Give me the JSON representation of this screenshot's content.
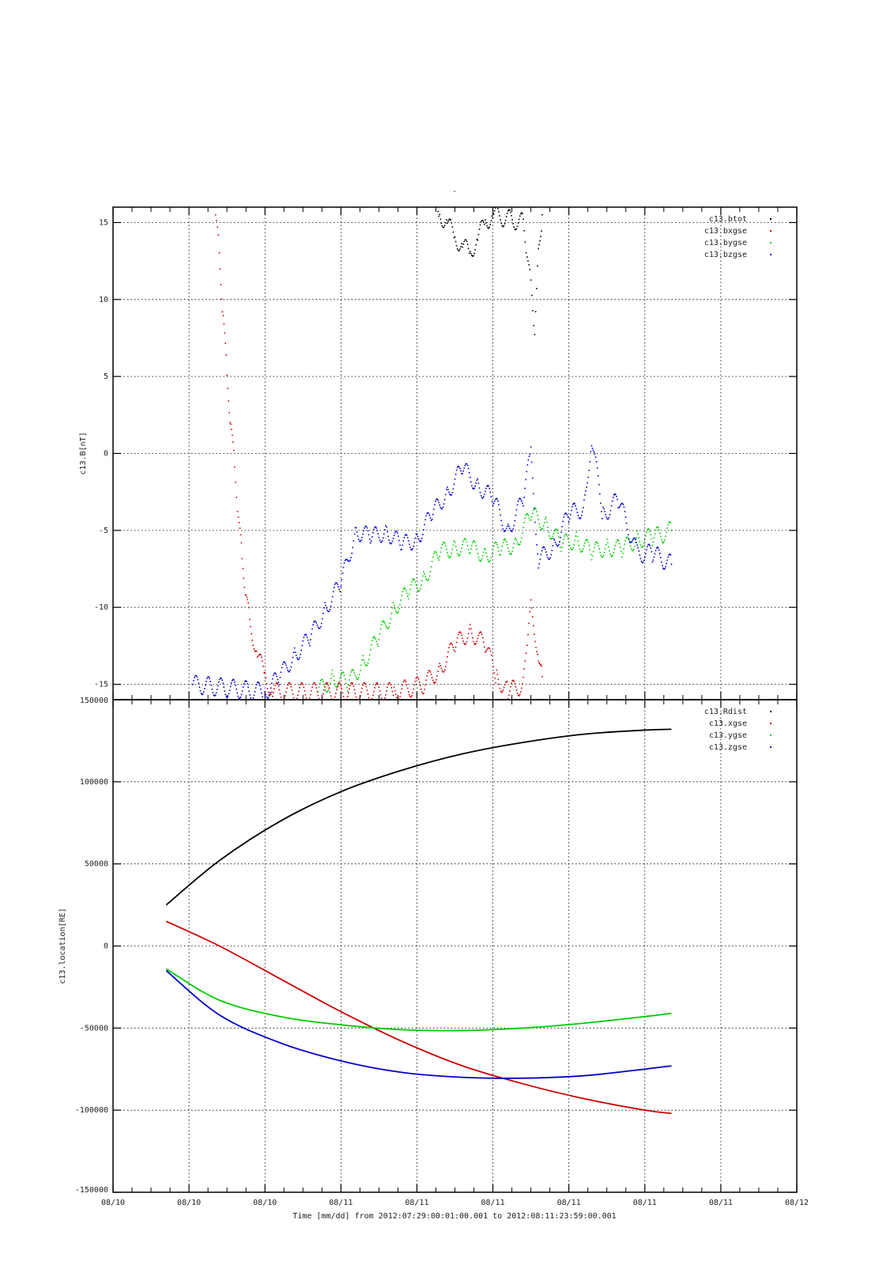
{
  "figure": {
    "top_title": "-",
    "x_caption": "Time [mm/dd]  from 2012:07:29:00:01:00.001  to  2012:08:11:23:59:00.001"
  },
  "chart_data": [
    {
      "type": "scatter",
      "ylabel": "c13.B[nT]",
      "ylim": [
        -16,
        16
      ],
      "yticks": [
        15,
        10,
        5,
        0,
        -5,
        -10,
        -15
      ],
      "ytick_labels": [
        "15",
        "10",
        "5",
        "0",
        "-5",
        "-10",
        "-15"
      ],
      "xlim": [
        0,
        9
      ],
      "grid": true,
      "legend_position": "top-right",
      "series": [
        {
          "name": "c13.btot",
          "color": "#000000",
          "points": [
            [
              4.2,
              16
            ],
            [
              4.3,
              15.5
            ],
            [
              4.4,
              15
            ],
            [
              4.5,
              14
            ],
            [
              4.6,
              13.5
            ],
            [
              4.7,
              13
            ],
            [
              4.8,
              14
            ],
            [
              4.9,
              15
            ],
            [
              5.0,
              15.5
            ],
            [
              5.4,
              15
            ],
            [
              5.45,
              13
            ],
            [
              5.5,
              11
            ],
            [
              5.55,
              8
            ],
            [
              5.6,
              13
            ],
            [
              5.65,
              15.5
            ]
          ]
        },
        {
          "name": "c13.bxgse",
          "color": "#cc0000",
          "points": [
            [
              1.35,
              15.5
            ],
            [
              1.4,
              13
            ],
            [
              1.45,
              9
            ],
            [
              1.5,
              5
            ],
            [
              1.55,
              2
            ],
            [
              1.6,
              -1
            ],
            [
              1.65,
              -4
            ],
            [
              1.7,
              -7
            ],
            [
              1.75,
              -9
            ],
            [
              1.8,
              -11
            ],
            [
              1.9,
              -13
            ],
            [
              2.0,
              -14.5
            ],
            [
              2.1,
              -15.5
            ],
            [
              3.7,
              -15.5
            ],
            [
              4.1,
              -15
            ],
            [
              4.3,
              -14
            ],
            [
              4.5,
              -12.5
            ],
            [
              4.7,
              -11.5
            ],
            [
              4.9,
              -12.5
            ],
            [
              5.05,
              -14.5
            ],
            [
              5.2,
              -15.5
            ],
            [
              5.4,
              -15
            ],
            [
              5.45,
              -12
            ],
            [
              5.5,
              -10
            ],
            [
              5.6,
              -13
            ],
            [
              5.65,
              -14.5
            ]
          ]
        },
        {
          "name": "c13.bygse",
          "color": "#00cc00",
          "points": [
            [
              2.7,
              -15.5
            ],
            [
              2.9,
              -14.5
            ],
            [
              3.1,
              -15
            ],
            [
              3.3,
              -13.5
            ],
            [
              3.5,
              -12
            ],
            [
              3.7,
              -10
            ],
            [
              3.9,
              -9
            ],
            [
              4.1,
              -8
            ],
            [
              4.3,
              -6.5
            ],
            [
              4.5,
              -6
            ],
            [
              4.7,
              -6.2
            ],
            [
              4.9,
              -6.5
            ],
            [
              5.1,
              -6.3
            ],
            [
              5.3,
              -5.8
            ],
            [
              5.5,
              -4
            ],
            [
              5.7,
              -4.5
            ],
            [
              5.9,
              -6
            ],
            [
              6.1,
              -5.5
            ],
            [
              6.3,
              -6.5
            ],
            [
              6.5,
              -6
            ],
            [
              6.7,
              -6.3
            ],
            [
              6.9,
              -5.5
            ],
            [
              7.1,
              -5.5
            ],
            [
              7.35,
              -5
            ]
          ]
        },
        {
          "name": "c13.bzgse",
          "color": "#0000cc",
          "points": [
            [
              1.05,
              -15
            ],
            [
              2.0,
              -15.5
            ],
            [
              2.2,
              -14.5
            ],
            [
              2.4,
              -13
            ],
            [
              2.6,
              -12
            ],
            [
              2.8,
              -10
            ],
            [
              3.0,
              -8.5
            ],
            [
              3.2,
              -5
            ],
            [
              3.4,
              -5.5
            ],
            [
              3.6,
              -5
            ],
            [
              3.8,
              -6
            ],
            [
              4.0,
              -5.5
            ],
            [
              4.2,
              -4
            ],
            [
              4.4,
              -2.5
            ],
            [
              4.6,
              -1
            ],
            [
              4.8,
              -2
            ],
            [
              5.0,
              -3
            ],
            [
              5.2,
              -5
            ],
            [
              5.4,
              -3
            ],
            [
              5.5,
              0
            ],
            [
              5.6,
              -7
            ],
            [
              5.8,
              -6
            ],
            [
              6.0,
              -4
            ],
            [
              6.2,
              -3.5
            ],
            [
              6.3,
              1
            ],
            [
              6.45,
              -4
            ],
            [
              6.65,
              -3
            ],
            [
              6.9,
              -6.5
            ],
            [
              7.1,
              -6.5
            ],
            [
              7.35,
              -7.2
            ]
          ]
        }
      ]
    },
    {
      "type": "line",
      "ylabel": "c13.location[RE]",
      "ylim": [
        -150000,
        150000
      ],
      "yticks": [
        150000,
        100000,
        50000,
        0,
        -50000,
        -100000,
        -150000
      ],
      "ytick_labels": [
        "150000",
        "100000",
        "50000",
        "0",
        "-50000",
        "-100000",
        "-150000"
      ],
      "xlim": [
        0,
        9
      ],
      "xtick_labels": [
        "08/10",
        "08/10",
        "08/10",
        "08/11",
        "08/11",
        "08/11",
        "08/11",
        "08/11",
        "08/11",
        "08/12"
      ],
      "grid": true,
      "legend_position": "top-right",
      "series": [
        {
          "name": "c13.Rdist",
          "color": "#000000",
          "x": [
            0.7,
            1.4,
            2.2,
            3.0,
            3.8,
            4.6,
            5.4,
            6.2,
            7.0,
            7.35
          ],
          "y": [
            25000,
            52000,
            76000,
            94000,
            107000,
            117000,
            124000,
            129000,
            131500,
            132000
          ]
        },
        {
          "name": "c13.xgse",
          "color": "#cc0000",
          "x": [
            0.7,
            1.4,
            2.2,
            3.0,
            3.8,
            4.6,
            5.4,
            6.2,
            7.0,
            7.35
          ],
          "y": [
            15000,
            0,
            -20000,
            -40000,
            -58000,
            -73000,
            -84000,
            -93000,
            -100000,
            -102000
          ]
        },
        {
          "name": "c13.ygse",
          "color": "#00cc00",
          "x": [
            0.7,
            1.4,
            2.2,
            3.0,
            3.8,
            4.6,
            5.4,
            6.2,
            7.0,
            7.35
          ],
          "y": [
            -14000,
            -33000,
            -43000,
            -48000,
            -51000,
            -51500,
            -50000,
            -47000,
            -43000,
            -41000
          ]
        },
        {
          "name": "c13.zgse",
          "color": "#0000cc",
          "x": [
            0.7,
            1.4,
            2.2,
            3.0,
            3.8,
            4.6,
            5.4,
            6.2,
            7.0,
            7.35
          ],
          "y": [
            -15000,
            -42000,
            -59000,
            -70000,
            -77000,
            -80000,
            -80500,
            -79000,
            -75000,
            -73000
          ]
        }
      ]
    }
  ]
}
